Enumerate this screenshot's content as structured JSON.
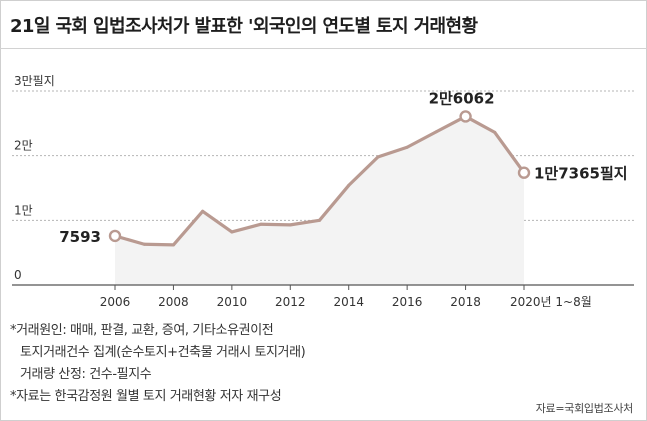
{
  "title": "21일 국회 입법조사처가 발표한 '외국인의 연도별 토지 거래현황",
  "notes": [
    "*거래원인: 매매, 판결, 교환, 증여, 기타소유권이전",
    "토지거래건수 집계(순수토지+건축물 거래시 토지거래)",
    "거래량 산정: 건수-필지수",
    "*자료는 한국감정원 월별 토지 거래현황 저자 재구성"
  ],
  "source": "자료=국회입법조사처",
  "colors": {
    "line": "#b99a91",
    "area": "#f3f3f3",
    "grid": "#b5b5b5",
    "axis": "#555555"
  },
  "chart_data": {
    "type": "area",
    "title": "외국인의 연도별 토지 거래현황",
    "x": [
      2006,
      2007,
      2008,
      2009,
      2010,
      2011,
      2012,
      2013,
      2014,
      2015,
      2016,
      2017,
      2018,
      2019,
      2020
    ],
    "values": [
      7593,
      6300,
      6200,
      11400,
      8200,
      9400,
      9300,
      10000,
      15400,
      19800,
      21300,
      23700,
      26062,
      23600,
      17365
    ],
    "ylim": [
      0,
      30000
    ],
    "y_ticks": [
      {
        "value": 0,
        "label": "0"
      },
      {
        "value": 10000,
        "label": "1만"
      },
      {
        "value": 20000,
        "label": "2만"
      },
      {
        "value": 30000,
        "label": "3만필지"
      }
    ],
    "x_ticks": [
      {
        "value": 2006,
        "label": "2006"
      },
      {
        "value": 2008,
        "label": "2008"
      },
      {
        "value": 2010,
        "label": "2010"
      },
      {
        "value": 2012,
        "label": "2012"
      },
      {
        "value": 2014,
        "label": "2014"
      },
      {
        "value": 2016,
        "label": "2016"
      },
      {
        "value": 2018,
        "label": "2018"
      },
      {
        "value": 2020,
        "label": "2020년 1~8월"
      }
    ],
    "annotations": [
      {
        "x": 2006,
        "y": 7593,
        "label": "7593",
        "position": "left"
      },
      {
        "x": 2018,
        "y": 26062,
        "label": "2만6062",
        "position": "above"
      },
      {
        "x": 2020,
        "y": 17365,
        "label": "1만7365필지",
        "position": "right"
      }
    ],
    "grid": true,
    "xlabel": "",
    "ylabel": ""
  }
}
